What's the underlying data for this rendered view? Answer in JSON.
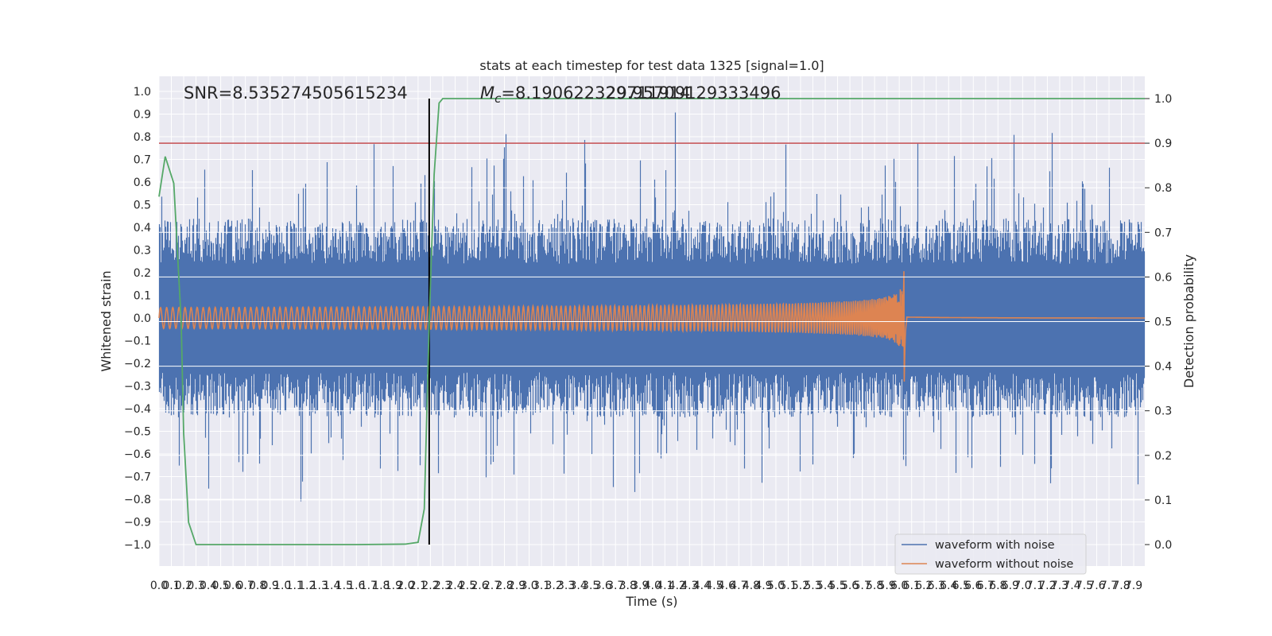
{
  "chart_data": {
    "type": "line",
    "title": "stats at each timestep for test data 1325 [signal=1.0]",
    "xlabel": "Time (s)",
    "ylabel": "Whitened strain",
    "y2label": "Detection probability",
    "xlim": [
      0.0,
      7.99
    ],
    "ylim": [
      -1.0,
      1.0
    ],
    "y2lim": [
      0.0,
      1.0
    ],
    "x_ticks": [
      "0.0",
      "0.1",
      "0.2",
      "0.3",
      "0.4",
      "0.5",
      "0.6",
      "0.7",
      "0.8",
      "0.9",
      "1.0",
      "1.1",
      "1.2",
      "1.3",
      "1.4",
      "1.5",
      "1.6",
      "1.7",
      "1.8",
      "1.9",
      "2.0",
      "2.1",
      "2.2",
      "2.3",
      "2.4",
      "2.5",
      "2.6",
      "2.7",
      "2.8",
      "2.9",
      "3.0",
      "3.1",
      "3.2",
      "3.3",
      "3.4",
      "3.5",
      "3.6",
      "3.7",
      "3.8",
      "3.9",
      "4.0",
      "4.1",
      "4.2",
      "4.3",
      "4.4",
      "4.5",
      "4.6",
      "4.7",
      "4.8",
      "4.9",
      "5.0",
      "5.1",
      "5.2",
      "5.3",
      "5.4",
      "5.5",
      "5.6",
      "5.7",
      "5.8",
      "5.9",
      "6.0",
      "6.1",
      "6.2",
      "6.3",
      "6.4",
      "6.5",
      "6.6",
      "6.7",
      "6.8",
      "6.9",
      "7.0",
      "7.1",
      "7.2",
      "7.3",
      "7.4",
      "7.5",
      "7.6",
      "7.7",
      "7.8",
      "7.9"
    ],
    "y_ticks": [
      "−1.0",
      "−0.9",
      "−0.8",
      "−0.7",
      "−0.6",
      "−0.5",
      "−0.4",
      "−0.3",
      "−0.2",
      "−0.1",
      "0.0",
      "0.1",
      "0.2",
      "0.3",
      "0.4",
      "0.5",
      "0.6",
      "0.7",
      "0.8",
      "0.9",
      "1.0"
    ],
    "y2_ticks": [
      "0.0",
      "0.1",
      "0.2",
      "0.3",
      "0.4",
      "0.5",
      "0.6",
      "0.7",
      "0.8",
      "0.9",
      "1.0"
    ],
    "annotations": {
      "snr": "SNR=8.535274505615234",
      "mc": "=8.190622329711914",
      "mc_overlap": "29.95709129333496",
      "mc_symbol": "M",
      "mc_sub": "c"
    },
    "threshold": {
      "value": 0.9,
      "axis": "y2",
      "color": "#c44e52"
    },
    "merger_marker": {
      "x": 2.19,
      "color": "#000000"
    },
    "series": [
      {
        "name": "waveform with noise",
        "color": "#4c72b0",
        "axis": "y",
        "description": "whitened noisy strain, roughly symmetric band within ±0.45 with spikes to about ±1.0"
      },
      {
        "name": "waveform without noise",
        "color": "#dd8452",
        "axis": "y",
        "chirp": {
          "start_amplitude": 0.015,
          "peak_amplitude": 0.21,
          "peak_min": -0.3,
          "merger_time": 6.04,
          "start_freq_hz": 20
        }
      },
      {
        "name": "Detection probability",
        "color": "#55a868",
        "axis": "y2",
        "x": [
          0.0,
          0.05,
          0.12,
          0.18,
          0.2,
          0.24,
          0.3,
          0.4,
          0.8,
          1.2,
          1.6,
          2.0,
          2.1,
          2.15,
          2.19,
          2.23,
          2.27,
          2.3,
          2.5,
          3.0,
          4.0,
          5.0,
          6.0,
          7.0,
          7.99
        ],
        "values": [
          0.78,
          0.87,
          0.81,
          0.5,
          0.25,
          0.05,
          0.0,
          0.0,
          0.0,
          0.0,
          0.0,
          0.001,
          0.005,
          0.08,
          0.5,
          0.83,
          0.99,
          1.0,
          1.0,
          1.0,
          1.0,
          1.0,
          1.0,
          1.0,
          1.0
        ]
      }
    ],
    "legend": {
      "placement": "lower-right",
      "entries": [
        {
          "label": "waveform with noise",
          "color": "#4c72b0"
        },
        {
          "label": "waveform without noise",
          "color": "#dd8452"
        }
      ]
    },
    "grid": true
  }
}
